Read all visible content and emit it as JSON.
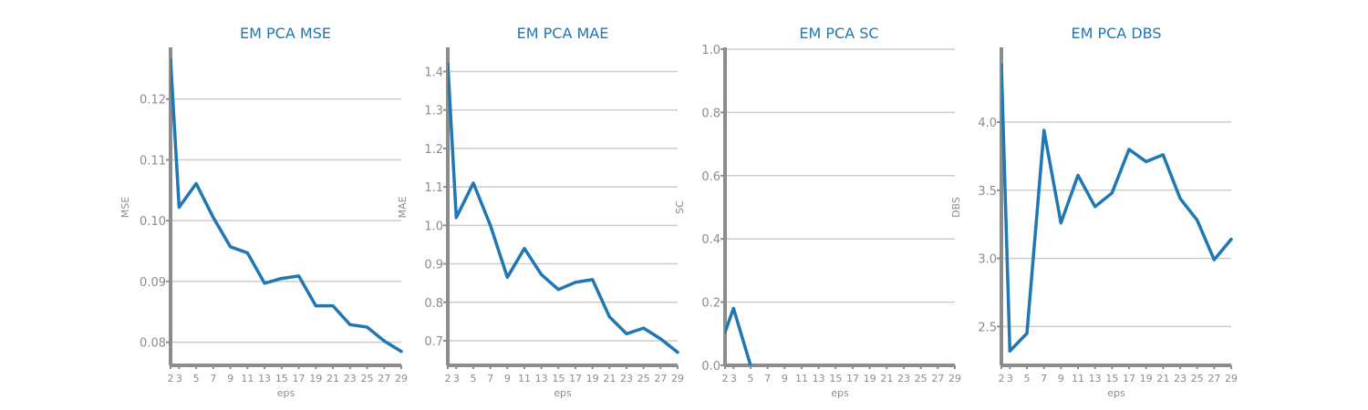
{
  "figure": {
    "background": "#ffffff",
    "title_color": "#1f77b4",
    "axis_color": "#8c8c8c",
    "grid_color": "#cccccc",
    "line_color": "#1f77b4"
  },
  "chart_data": [
    {
      "type": "line",
      "title": "EM PCA MSE",
      "xlabel": "eps",
      "ylabel": "MSE",
      "xticks": [
        2,
        3,
        5,
        7,
        9,
        11,
        13,
        15,
        17,
        19,
        21,
        23,
        25,
        27,
        29
      ],
      "yticks": [
        "0.08",
        "0.09",
        "0.10",
        "0.11",
        "0.12"
      ],
      "ytick_values": [
        0.08,
        0.09,
        0.1,
        0.11,
        0.12
      ],
      "ylim": [
        0.0762,
        0.1282
      ],
      "xlim": [
        2,
        29
      ],
      "grid": "horizontal",
      "series": [
        {
          "x": [
            2,
            3,
            5,
            7,
            9,
            11,
            13,
            15,
            17,
            19,
            21,
            23,
            25,
            27,
            29
          ],
          "values": [
            0.1265,
            0.1022,
            0.1061,
            0.1005,
            0.0957,
            0.0947,
            0.0897,
            0.0905,
            0.0909,
            0.086,
            0.086,
            0.0829,
            0.0825,
            0.0802,
            0.0785
          ]
        }
      ]
    },
    {
      "type": "line",
      "title": "EM PCA MAE",
      "xlabel": "eps",
      "ylabel": "MAE",
      "xticks": [
        2,
        3,
        5,
        7,
        9,
        11,
        13,
        15,
        17,
        19,
        21,
        23,
        25,
        27,
        29
      ],
      "yticks": [
        "0.7",
        "0.8",
        "0.9",
        "1.0",
        "1.1",
        "1.2",
        "1.3",
        "1.4"
      ],
      "ytick_values": [
        0.7,
        0.8,
        0.9,
        1.0,
        1.1,
        1.2,
        1.3,
        1.4
      ],
      "ylim": [
        0.636,
        1.458
      ],
      "xlim": [
        2,
        29
      ],
      "grid": "horizontal",
      "series": [
        {
          "x": [
            2,
            3,
            5,
            7,
            9,
            11,
            13,
            15,
            17,
            19,
            21,
            23,
            25,
            27,
            29
          ],
          "values": [
            1.42,
            1.02,
            1.11,
            1.0,
            0.865,
            0.94,
            0.872,
            0.833,
            0.852,
            0.859,
            0.762,
            0.718,
            0.733,
            0.705,
            0.67
          ]
        }
      ]
    },
    {
      "type": "line",
      "title": "EM PCA SC",
      "xlabel": "eps",
      "ylabel": "SC",
      "xticks": [
        2,
        3,
        5,
        7,
        9,
        11,
        13,
        15,
        17,
        19,
        21,
        23,
        25,
        27,
        29
      ],
      "yticks": [
        "0.0",
        "0.2",
        "0.4",
        "0.6",
        "0.8",
        "1.0"
      ],
      "ytick_values": [
        0.0,
        0.2,
        0.4,
        0.6,
        0.8,
        1.0
      ],
      "ylim": [
        0.0,
        1.0
      ],
      "xlim": [
        2,
        29
      ],
      "grid": "horizontal",
      "series": [
        {
          "x": [
            2,
            3,
            5
          ],
          "values": [
            0.105,
            0.18,
            0.0
          ]
        }
      ]
    },
    {
      "type": "line",
      "title": "EM PCA DBS",
      "xlabel": "eps",
      "ylabel": "DBS",
      "xticks": [
        2,
        3,
        5,
        7,
        9,
        11,
        13,
        15,
        17,
        19,
        21,
        23,
        25,
        27,
        29
      ],
      "yticks": [
        "2.5",
        "3.0",
        "3.5",
        "4.0"
      ],
      "ytick_values": [
        2.5,
        3.0,
        3.5,
        4.0
      ],
      "ylim": [
        2.215,
        4.535
      ],
      "xlim": [
        2,
        29
      ],
      "grid": "horizontal",
      "series": [
        {
          "x": [
            2,
            3,
            5,
            7,
            9,
            11,
            13,
            15,
            17,
            19,
            21,
            23,
            25,
            27,
            29
          ],
          "values": [
            4.42,
            2.32,
            2.45,
            3.94,
            3.26,
            3.61,
            3.38,
            3.48,
            3.8,
            3.71,
            3.76,
            3.44,
            3.28,
            2.99,
            3.14
          ]
        }
      ]
    }
  ]
}
